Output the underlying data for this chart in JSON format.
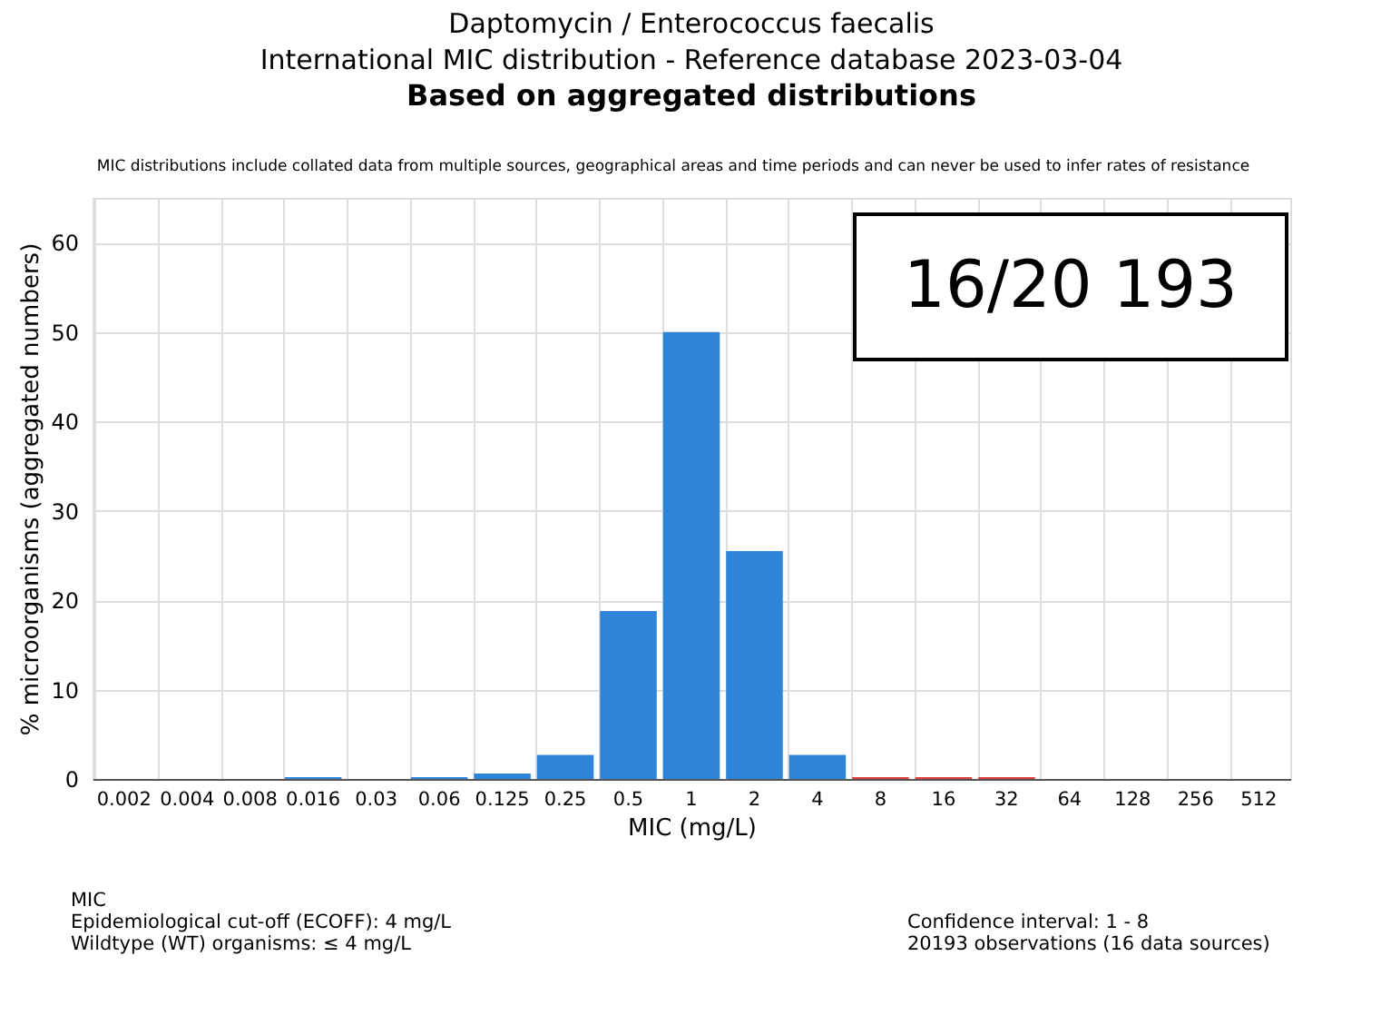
{
  "chart_data": {
    "type": "bar",
    "title": "Daptomycin / Enterococcus faecalis\nInternational MIC distribution - Reference database 2023-03-04",
    "subtitle": "Based on aggregated distributions",
    "xlabel": "MIC (mg/L)",
    "ylabel": "% microorganisms (aggregated numbers)",
    "categories": [
      "0.002",
      "0.004",
      "0.008",
      "0.016",
      "0.03",
      "0.06",
      "0.125",
      "0.25",
      "0.5",
      "1",
      "2",
      "4",
      "8",
      "16",
      "32",
      "64",
      "128",
      "256",
      "512"
    ],
    "values": [
      0,
      0,
      0,
      0.2,
      0,
      0.2,
      0.6,
      2.7,
      18.8,
      50,
      25.5,
      2.7,
      0.2,
      0.2,
      0.2,
      0,
      0,
      0,
      0
    ],
    "colors": [
      "#2e84d9",
      "#2e84d9",
      "#2e84d9",
      "#2e84d9",
      "#2e84d9",
      "#2e84d9",
      "#2e84d9",
      "#2e84d9",
      "#2e84d9",
      "#2e84d9",
      "#2e84d9",
      "#2e84d9",
      "#e03a3a",
      "#e03a3a",
      "#e03a3a",
      "#2e84d9",
      "#2e84d9",
      "#2e84d9",
      "#2e84d9"
    ],
    "ylim": [
      0,
      65
    ],
    "yticks": [
      0,
      10,
      20,
      30,
      40,
      50,
      60
    ],
    "grid": true,
    "annotations": [
      "MIC distributions include collated data from multiple sources, geographical areas and time periods and can never be used to infer rates of resistance",
      "16/20 193",
      "MIC",
      "Epidemiological cut-off (ECOFF): 4 mg/L",
      "Wildtype (WT) organisms: ≤ 4 mg/L",
      "Confidence interval: 1 - 8",
      "20193 observations (16 data sources)"
    ]
  }
}
